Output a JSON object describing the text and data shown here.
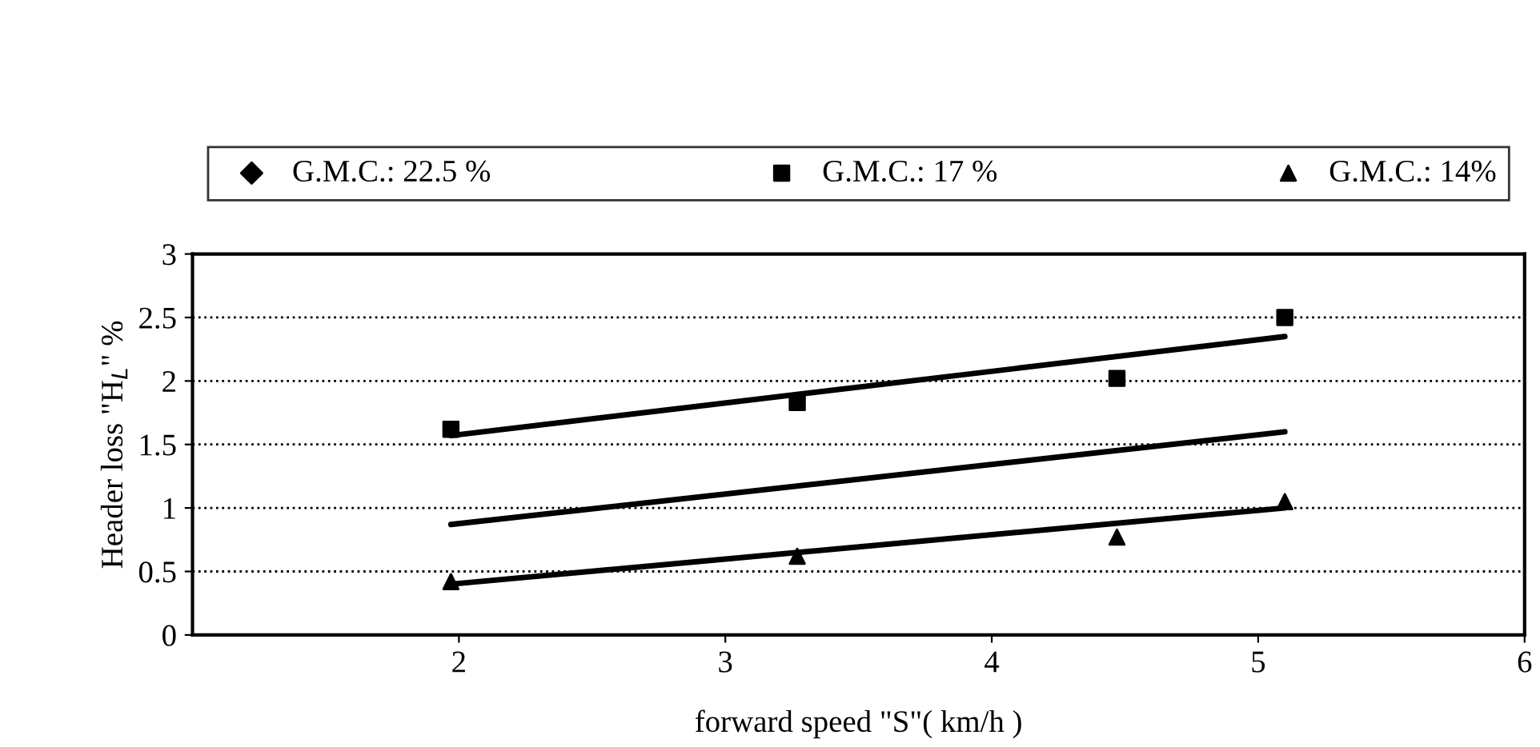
{
  "chart_data": {
    "type": "scatter",
    "xlabel": "forward speed \"S\"( km/h )",
    "ylabel": "Header loss \"H$_{L}$\" %",
    "xlim": [
      1,
      6
    ],
    "xticks": [
      2,
      3,
      4,
      5,
      6
    ],
    "ylim": [
      0,
      3
    ],
    "yticks": [
      0,
      0.5,
      1,
      1.5,
      2,
      2.5,
      3
    ],
    "grid": "y",
    "legend": "top",
    "series": [
      {
        "name": "G.M.C.: 22.5 %",
        "marker": "diamond",
        "color": "#000000"
      },
      {
        "name": "G.M.C.: 17 %",
        "marker": "square",
        "color": "#000000",
        "x": [
          1.97,
          3.27,
          4.47,
          5.1
        ],
        "values": [
          1.62,
          1.83,
          2.02,
          2.5
        ]
      },
      {
        "name": "G.M.C.: 14%",
        "marker": "triangle",
        "color": "#000000",
        "x": [
          1.97,
          3.27,
          4.47,
          5.1
        ],
        "values": [
          0.42,
          0.62,
          0.77,
          1.05
        ]
      },
      {
        "type": "line",
        "line_style": "solid",
        "color": "#000000",
        "x": [
          1.97,
          5.1
        ],
        "values": [
          0.87,
          1.6
        ]
      },
      {
        "type": "line",
        "line_style": "solid",
        "color": "#000000",
        "x": [
          1.97,
          5.1
        ],
        "values": [
          1.57,
          2.35
        ]
      },
      {
        "type": "line",
        "line_style": "solid",
        "color": "#000000",
        "x": [
          1.97,
          5.1
        ],
        "values": [
          0.4,
          1.0
        ]
      }
    ]
  }
}
